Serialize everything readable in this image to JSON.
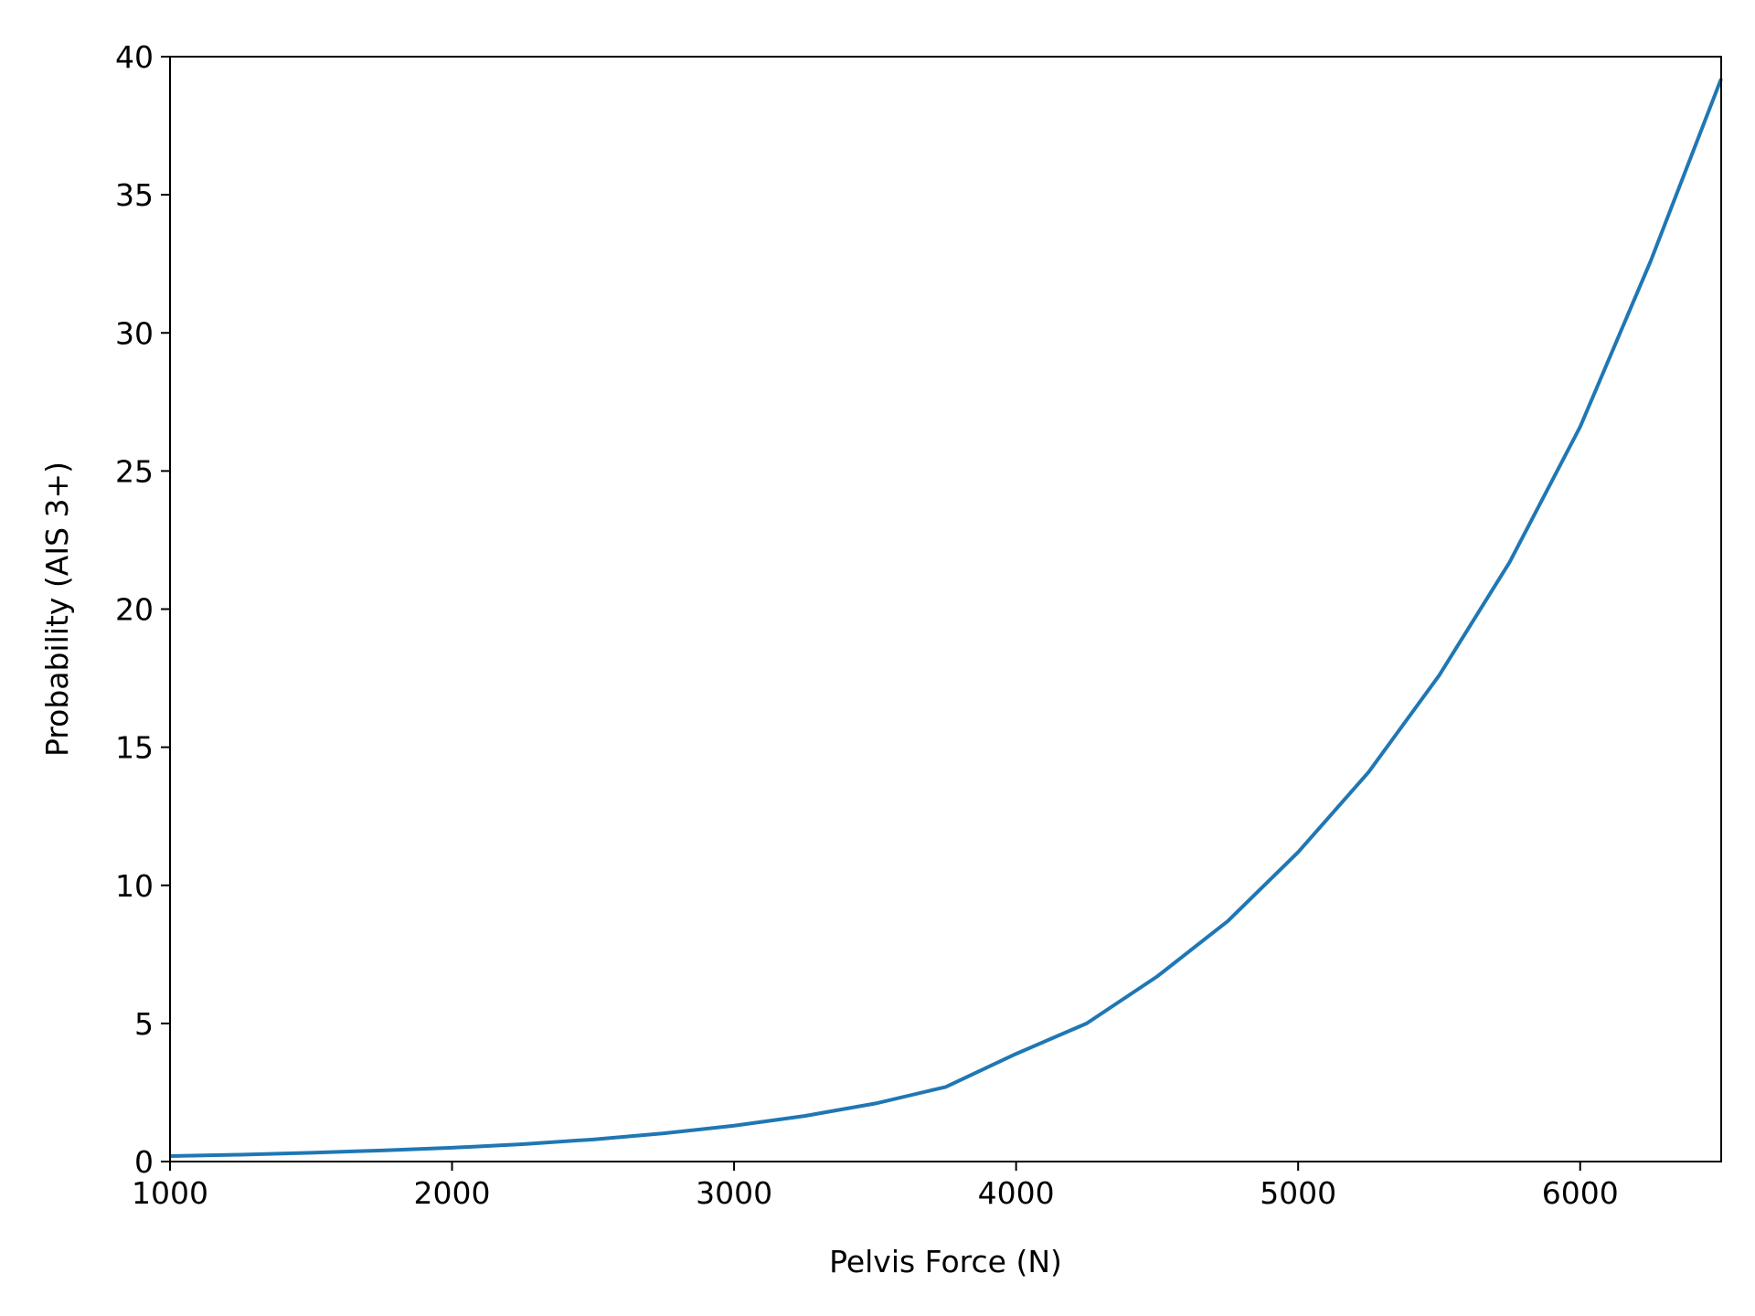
{
  "chart_data": {
    "type": "line",
    "title": "",
    "xlabel": "Pelvis Force (N)",
    "ylabel": "Probability (AIS 3+)",
    "xlim": [
      1000,
      6500
    ],
    "ylim": [
      0,
      40
    ],
    "xticks": [
      1000,
      2000,
      3000,
      4000,
      5000,
      6000
    ],
    "yticks": [
      0,
      5,
      10,
      15,
      20,
      25,
      30,
      35,
      40
    ],
    "grid": false,
    "legend": "none",
    "series": [
      {
        "color": "#1f77b4",
        "x": [
          1000,
          1250,
          1500,
          1750,
          2000,
          2250,
          2500,
          2750,
          3000,
          3250,
          3500,
          3750,
          4000,
          4250,
          4500,
          4750,
          5000,
          5250,
          5500,
          5750,
          6000,
          6250,
          6500
        ],
        "y": [
          0.2,
          0.25,
          0.32,
          0.4,
          0.5,
          0.63,
          0.8,
          1.02,
          1.3,
          1.65,
          2.1,
          2.7,
          3.9,
          5.0,
          6.7,
          8.7,
          11.2,
          14.1,
          17.6,
          21.7,
          26.6,
          32.6,
          39.2
        ]
      }
    ]
  }
}
